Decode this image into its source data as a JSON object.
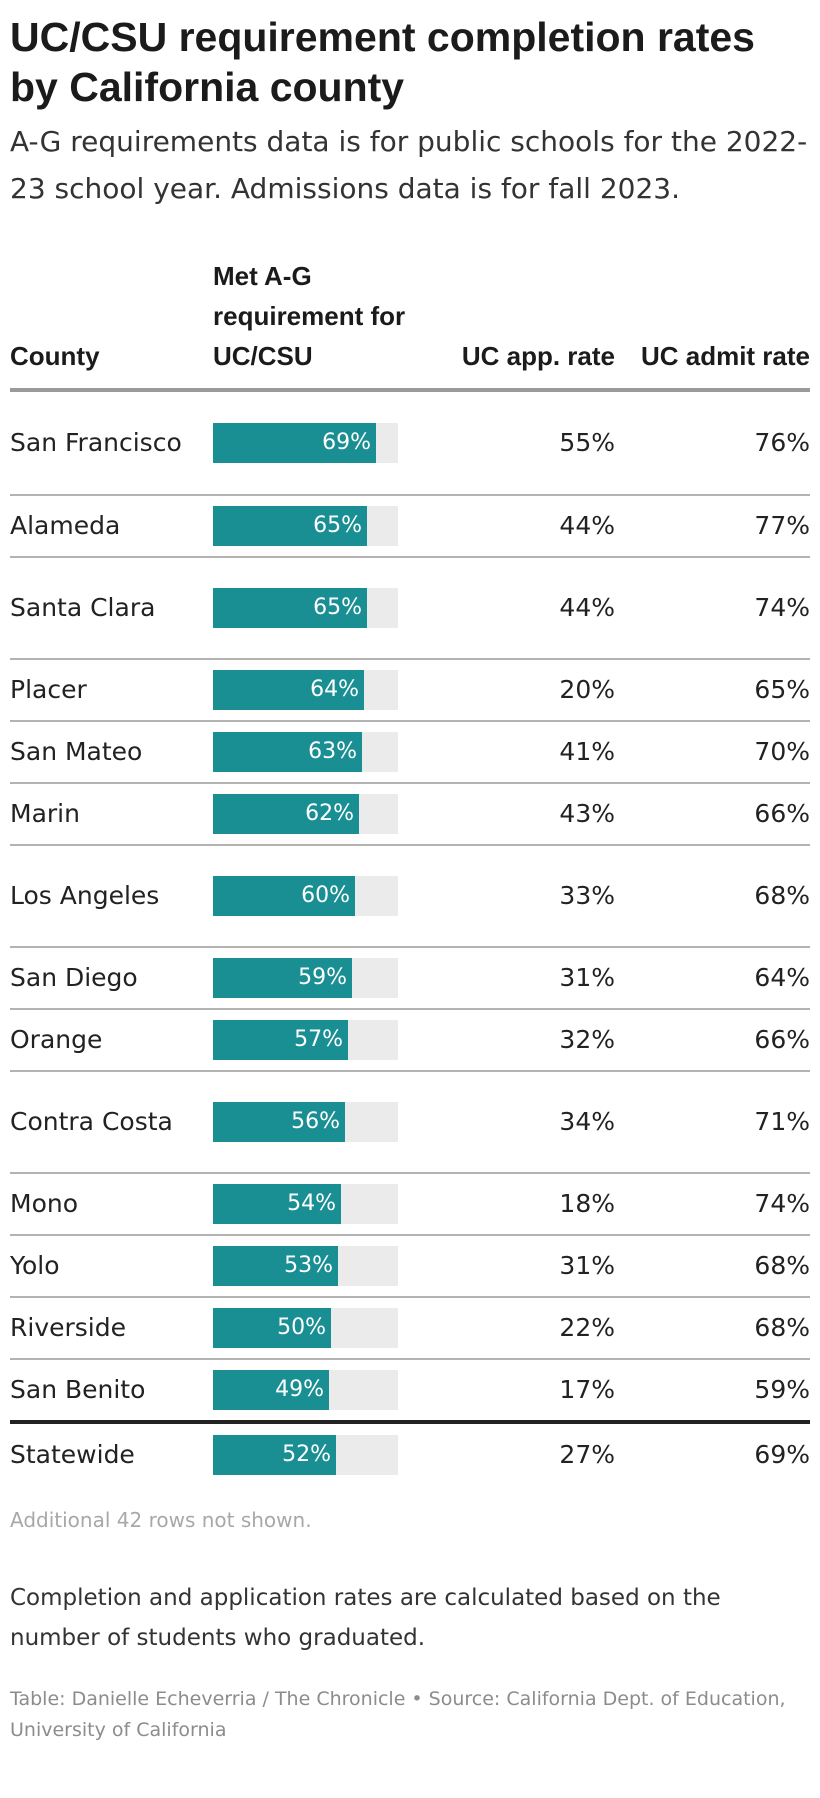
{
  "title": "UC/CSU requirement completion rates by California county",
  "subtitle": "A-G requirements data is for public schools for the 2022-23 school year. Admissions data is for fall 2023.",
  "colors": {
    "bar": "#1a8f93",
    "bar_track": "#ebebeb"
  },
  "table": {
    "headers": {
      "county": "County",
      "ag": "Met A-G requirement for UC/CSU",
      "uc_app": "UC app. rate",
      "uc_admit": "UC admit rate"
    }
  },
  "chart_data": {
    "type": "table",
    "title": "UC/CSU requirement completion rates by California county",
    "columns": [
      "County",
      "Met A-G requirement for UC/CSU",
      "UC app. rate",
      "UC admit rate"
    ],
    "rows": [
      {
        "county": "San Francisco",
        "ag": 69,
        "ag_label": "69%",
        "app": "55%",
        "admit": "76%"
      },
      {
        "county": "Alameda",
        "ag": 65,
        "ag_label": "65%",
        "app": "44%",
        "admit": "77%"
      },
      {
        "county": "Santa Clara",
        "ag": 65,
        "ag_label": "65%",
        "app": "44%",
        "admit": "74%"
      },
      {
        "county": "Placer",
        "ag": 64,
        "ag_label": "64%",
        "app": "20%",
        "admit": "65%"
      },
      {
        "county": "San Mateo",
        "ag": 63,
        "ag_label": "63%",
        "app": "41%",
        "admit": "70%"
      },
      {
        "county": "Marin",
        "ag": 62,
        "ag_label": "62%",
        "app": "43%",
        "admit": "66%"
      },
      {
        "county": "Los Angeles",
        "ag": 60,
        "ag_label": "60%",
        "app": "33%",
        "admit": "68%"
      },
      {
        "county": "San Diego",
        "ag": 59,
        "ag_label": "59%",
        "app": "31%",
        "admit": "64%"
      },
      {
        "county": "Orange",
        "ag": 57,
        "ag_label": "57%",
        "app": "32%",
        "admit": "66%"
      },
      {
        "county": "Contra Costa",
        "ag": 56,
        "ag_label": "56%",
        "app": "34%",
        "admit": "71%"
      },
      {
        "county": "Mono",
        "ag": 54,
        "ag_label": "54%",
        "app": "18%",
        "admit": "74%"
      },
      {
        "county": "Yolo",
        "ag": 53,
        "ag_label": "53%",
        "app": "31%",
        "admit": "68%"
      },
      {
        "county": "Riverside",
        "ag": 50,
        "ag_label": "50%",
        "app": "22%",
        "admit": "68%"
      },
      {
        "county": "San Benito",
        "ag": 49,
        "ag_label": "49%",
        "app": "17%",
        "admit": "59%"
      }
    ],
    "summary": {
      "county": "Statewide",
      "ag": 52,
      "ag_label": "52%",
      "app": "27%",
      "admit": "69%"
    }
  },
  "notes": {
    "rows_hidden": "Additional 42 rows not shown.",
    "method": "Completion and application rates are calculated based on the number of students who graduated.",
    "source": "Table: Danielle Echeverria / The Chronicle • Source: California Dept. of Education, University of California"
  }
}
